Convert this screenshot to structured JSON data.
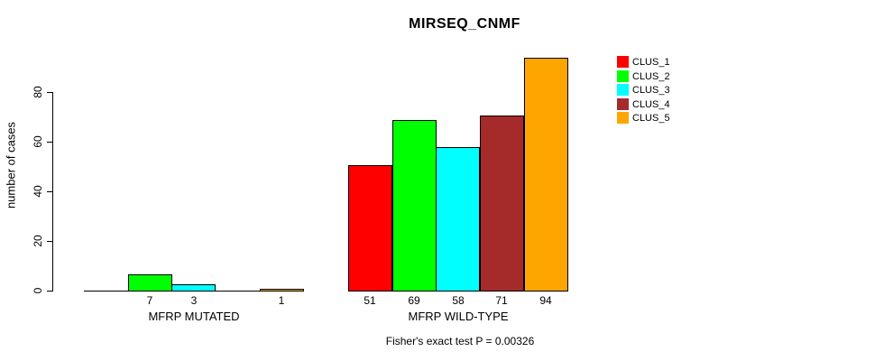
{
  "chart_data": {
    "type": "bar",
    "title": "MIRSEQ_CNMF",
    "ylabel": "number of cases",
    "xlabel": "",
    "footnote": "Fisher's exact test P = 0.00326",
    "categories": [
      "MFRP MUTATED",
      "MFRP WILD-TYPE"
    ],
    "yticks": [
      0,
      20,
      40,
      60,
      80
    ],
    "ylim": [
      0,
      100
    ],
    "grid": false,
    "legend_position": "top-right",
    "axis_color": "#000000",
    "bar_border_color": "#000000",
    "series": [
      {
        "name": "CLUS_1",
        "color": "#FF0000",
        "values": [
          0,
          51
        ]
      },
      {
        "name": "CLUS_2",
        "color": "#00FF00",
        "values": [
          7,
          69
        ]
      },
      {
        "name": "CLUS_3",
        "color": "#00FFFF",
        "values": [
          3,
          58
        ]
      },
      {
        "name": "CLUS_4",
        "color": "#A52A2A",
        "values": [
          0,
          71
        ]
      },
      {
        "name": "CLUS_5",
        "color": "#FFA500",
        "values": [
          1,
          94
        ]
      }
    ],
    "value_labels": [
      [
        "",
        "7",
        "3",
        "",
        "1"
      ],
      [
        "51",
        "69",
        "58",
        "71",
        "94"
      ]
    ]
  }
}
